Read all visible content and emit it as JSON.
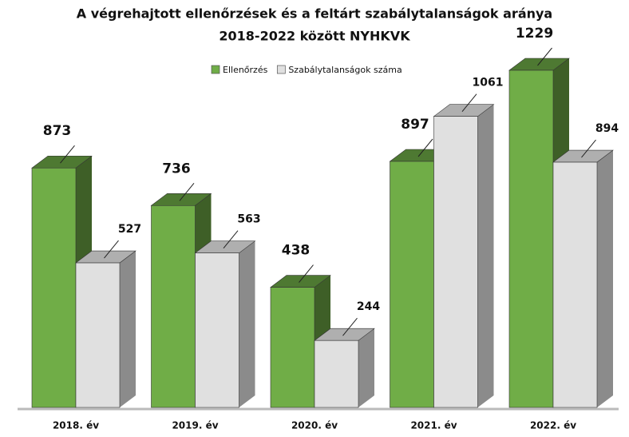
{
  "chart_data": {
    "type": "bar3d",
    "title": [
      "A végrehajtott ellenőrzések és a feltárt szabálytalanságok aránya",
      "2018-2022 között NYHKVK"
    ],
    "categories": [
      "2018. év",
      "2019. év",
      "2020. év",
      "2021. év",
      "2022. év"
    ],
    "series": [
      {
        "name": "Ellenőrzés",
        "color": "#70ad47",
        "values": [
          873,
          736,
          438,
          897,
          1229
        ]
      },
      {
        "name": "Szabálytalanságok száma",
        "color": "#e0e0e0",
        "values": [
          527,
          563,
          244,
          1061,
          894
        ]
      }
    ],
    "legend": "top"
  }
}
